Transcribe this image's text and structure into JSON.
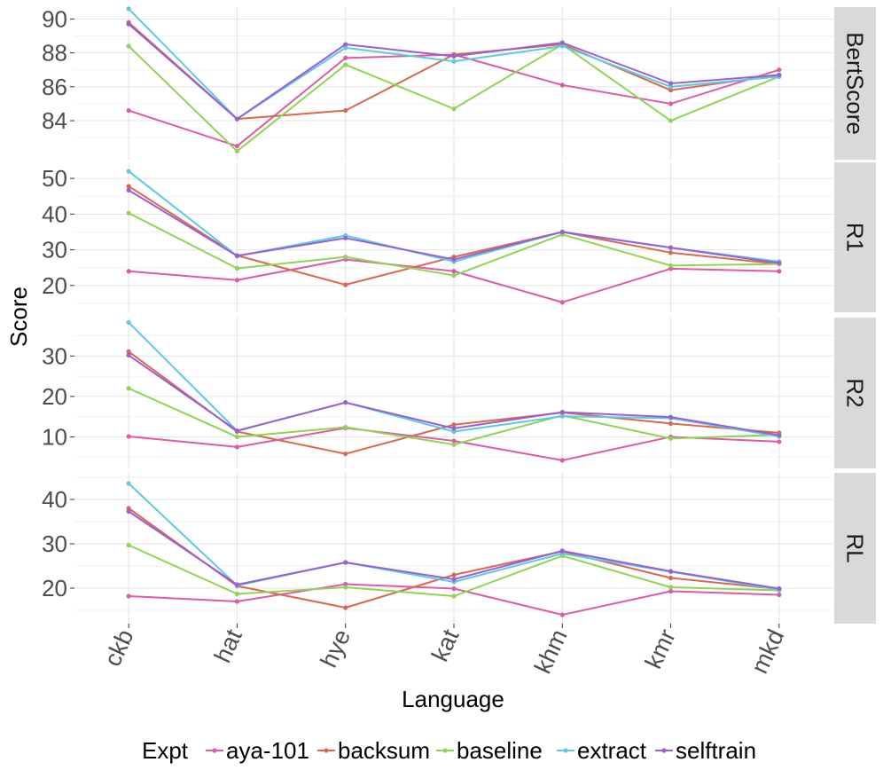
{
  "chart_data": {
    "type": "line",
    "xlabel": "Language",
    "ylabel": "Score",
    "categories": [
      "ckb",
      "hat",
      "hye",
      "kat",
      "khm",
      "kmr",
      "mkd"
    ],
    "legend": {
      "title": "Expt",
      "position": "bottom",
      "entries": [
        "aya-101",
        "backsum",
        "baseline",
        "extract",
        "selftrain"
      ]
    },
    "colors": {
      "aya-101": "#de5aa6",
      "backsum": "#d9684f",
      "baseline": "#8fd453",
      "extract": "#5bcbe0",
      "selftrain": "#9a5fd8"
    },
    "grid": true,
    "facets": [
      {
        "label": "BertScore",
        "ylim": [
          81.7,
          90.7
        ],
        "ticks": [
          84,
          86,
          88,
          90
        ],
        "series": [
          {
            "name": "aya-101",
            "values": [
              84.6,
              82.5,
              87.7,
              87.9,
              86.1,
              85.0,
              87.0
            ]
          },
          {
            "name": "backsum",
            "values": [
              89.8,
              84.1,
              84.6,
              87.9,
              88.5,
              85.8,
              86.7
            ]
          },
          {
            "name": "baseline",
            "values": [
              88.4,
              82.2,
              87.3,
              84.7,
              88.5,
              84.0,
              86.6
            ]
          },
          {
            "name": "extract",
            "values": [
              90.6,
              84.1,
              88.3,
              87.5,
              88.4,
              86.0,
              86.6
            ]
          },
          {
            "name": "selftrain",
            "values": [
              89.7,
              84.1,
              88.5,
              87.8,
              88.6,
              86.2,
              86.7
            ]
          }
        ]
      },
      {
        "label": "R1",
        "ylim": [
          12.5,
          54.5
        ],
        "ticks": [
          20,
          30,
          40,
          50
        ],
        "series": [
          {
            "name": "aya-101",
            "values": [
              24.0,
              21.5,
              27.3,
              24.0,
              15.3,
              24.7,
              24.0
            ]
          },
          {
            "name": "backsum",
            "values": [
              47.8,
              28.4,
              20.2,
              28.0,
              35.0,
              29.2,
              26.0
            ]
          },
          {
            "name": "baseline",
            "values": [
              40.3,
              24.8,
              28.0,
              22.8,
              34.3,
              25.6,
              26.0
            ]
          },
          {
            "name": "extract",
            "values": [
              52.0,
              28.3,
              34.0,
              26.7,
              35.0,
              30.6,
              26.7
            ]
          },
          {
            "name": "selftrain",
            "values": [
              46.7,
              28.3,
              33.3,
              27.3,
              35.0,
              30.6,
              26.3
            ]
          }
        ]
      },
      {
        "label": "R2",
        "ylim": [
          2.2,
          39.5
        ],
        "ticks": [
          10,
          20,
          30
        ],
        "series": [
          {
            "name": "aya-101",
            "values": [
              10.1,
              7.5,
              12.2,
              9.0,
              4.2,
              10.0,
              8.8
            ]
          },
          {
            "name": "backsum",
            "values": [
              31.1,
              11.3,
              5.8,
              13.0,
              16.0,
              13.3,
              11.0
            ]
          },
          {
            "name": "baseline",
            "values": [
              22.0,
              10.0,
              12.4,
              8.1,
              15.3,
              9.6,
              10.5
            ]
          },
          {
            "name": "extract",
            "values": [
              38.3,
              11.5,
              18.5,
              11.3,
              15.1,
              14.6,
              10.1
            ]
          },
          {
            "name": "selftrain",
            "values": [
              30.2,
              11.5,
              18.5,
              12.1,
              16.1,
              14.9,
              10.4
            ]
          }
        ]
      },
      {
        "label": "RL",
        "ylim": [
          12.0,
          46.0
        ],
        "ticks": [
          20,
          30,
          40
        ],
        "series": [
          {
            "name": "aya-101",
            "values": [
              18.2,
              17.0,
              20.9,
              19.9,
              14.0,
              19.3,
              18.5
            ]
          },
          {
            "name": "backsum",
            "values": [
              38.0,
              20.5,
              15.6,
              23.0,
              28.3,
              22.3,
              19.8
            ]
          },
          {
            "name": "baseline",
            "values": [
              29.7,
              18.7,
              20.2,
              18.2,
              27.3,
              20.2,
              19.5
            ]
          },
          {
            "name": "extract",
            "values": [
              43.6,
              20.6,
              25.8,
              21.4,
              27.8,
              23.7,
              19.6
            ]
          },
          {
            "name": "selftrain",
            "values": [
              37.3,
              20.8,
              25.8,
              22.0,
              28.4,
              23.8,
              19.9
            ]
          }
        ]
      }
    ]
  }
}
